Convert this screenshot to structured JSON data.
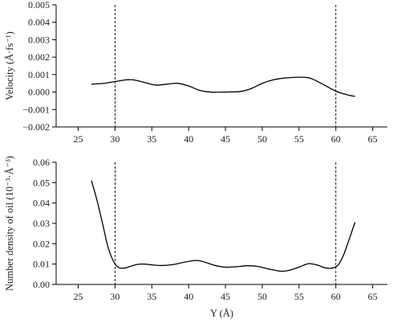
{
  "chart_data": [
    {
      "type": "line",
      "xlabel": "",
      "ylabel": "Velocity (Å·fs⁻¹)",
      "xlim": [
        22,
        67
      ],
      "ylim": [
        -0.002,
        0.005
      ],
      "x_ticks": [
        25,
        30,
        35,
        40,
        45,
        50,
        55,
        60,
        65
      ],
      "x_tick_labels": [
        "25",
        "30",
        "35",
        "40",
        "45",
        "50",
        "55",
        "60",
        "65"
      ],
      "y_ticks": [
        -0.002,
        -0.001,
        0.0,
        0.001,
        0.002,
        0.003,
        0.004,
        0.005
      ],
      "y_tick_labels": [
        "−0.002",
        "−0.001",
        "0.000",
        "0.001",
        "0.002",
        "0.003",
        "0.004",
        "0.005"
      ],
      "vertical_lines": [
        30,
        60
      ],
      "grid": false,
      "x": [
        26.8,
        28.5,
        30.0,
        31.5,
        32.5,
        34.0,
        35.5,
        37.0,
        38.5,
        40.0,
        41.5,
        43.0,
        45.0,
        47.0,
        48.5,
        50.0,
        51.5,
        53.0,
        55.0,
        56.5,
        58.0,
        60.0,
        61.5,
        62.6
      ],
      "y": [
        0.00045,
        0.0005,
        0.0006,
        0.0007,
        0.0007,
        0.00055,
        0.0004,
        0.00045,
        0.0005,
        0.00035,
        0.0001,
        0.0,
        0.0,
        3e-05,
        0.0002,
        0.0005,
        0.0007,
        0.0008,
        0.00085,
        0.0008,
        0.0005,
        5e-05,
        -0.00015,
        -0.00025
      ]
    },
    {
      "type": "line",
      "xlabel": "Y (Å)",
      "ylabel": "Number density of oil (10⁻³·Å⁻³)",
      "xlim": [
        22,
        67
      ],
      "ylim": [
        0.0,
        0.06
      ],
      "x_ticks": [
        25,
        30,
        35,
        40,
        45,
        50,
        55,
        60,
        65
      ],
      "x_tick_labels": [
        "25",
        "30",
        "35",
        "40",
        "45",
        "50",
        "55",
        "60",
        "65"
      ],
      "y_ticks": [
        0.0,
        0.01,
        0.02,
        0.03,
        0.04,
        0.05,
        0.06
      ],
      "y_tick_labels": [
        "0.00",
        "0.01",
        "0.02",
        "0.03",
        "0.04",
        "0.05",
        "0.06"
      ],
      "vertical_lines": [
        30,
        60
      ],
      "grid": false,
      "x": [
        26.8,
        27.5,
        28.3,
        29.0,
        29.7,
        30.4,
        31.2,
        32.0,
        33.0,
        34.0,
        35.0,
        36.5,
        38.0,
        39.5,
        41.0,
        42.0,
        43.5,
        45.0,
        46.5,
        48.0,
        49.5,
        51.0,
        52.5,
        53.5,
        55.0,
        56.3,
        57.5,
        58.5,
        59.5,
        60.3,
        61.0,
        61.7,
        62.6
      ],
      "y": [
        0.051,
        0.042,
        0.03,
        0.019,
        0.012,
        0.0085,
        0.008,
        0.0088,
        0.0098,
        0.01,
        0.0096,
        0.0093,
        0.0098,
        0.011,
        0.0118,
        0.0112,
        0.0094,
        0.0085,
        0.0087,
        0.0092,
        0.0088,
        0.0075,
        0.0065,
        0.0068,
        0.0085,
        0.0102,
        0.0095,
        0.0082,
        0.008,
        0.0095,
        0.014,
        0.021,
        0.0305
      ]
    }
  ]
}
